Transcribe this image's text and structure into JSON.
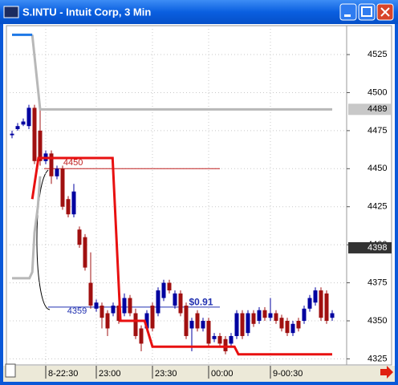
{
  "window": {
    "title": "S.INTU - Intuit Corp, 3 Min"
  },
  "chart_data": {
    "type": "candlestick",
    "up_color": "#0000a0",
    "down_color": "#a01010",
    "open": [
      4472,
      4476,
      4479,
      4478,
      4490,
      4475,
      4455,
      4460,
      4445,
      4450,
      4430,
      4420,
      4410,
      4405,
      4375,
      4358,
      4360,
      4355,
      4355,
      4360,
      4355,
      4365,
      4355,
      4345,
      4345,
      4360,
      4355,
      4365,
      4375,
      4360,
      4368,
      4360,
      4345,
      4355,
      4345,
      4350,
      4338,
      4340,
      4338,
      4335,
      4340,
      4355,
      4342,
      4355,
      4350,
      4357,
      4352,
      4355,
      4352,
      4350,
      4342,
      4350,
      4350,
      4358,
      4362,
      4370,
      4368,
      4352
    ],
    "close": [
      4473,
      4478,
      4481,
      4490,
      4455,
      4455,
      4460,
      4445,
      4450,
      4425,
      4420,
      4435,
      4400,
      4385,
      4360,
      4362,
      4352,
      4345,
      4360,
      4350,
      4365,
      4355,
      4340,
      4335,
      4355,
      4345,
      4370,
      4375,
      4370,
      4368,
      4355,
      4340,
      4350,
      4345,
      4350,
      4335,
      4340,
      4335,
      4330,
      4340,
      4355,
      4340,
      4355,
      4348,
      4357,
      4352,
      4355,
      4350,
      4345,
      4342,
      4348,
      4345,
      4358,
      4365,
      4370,
      4352,
      4350,
      4355
    ],
    "high": [
      4475,
      4480,
      4483,
      4492,
      4492,
      4490,
      4462,
      4462,
      4452,
      4452,
      4432,
      4440,
      4412,
      4407,
      4395,
      4364,
      4362,
      4357,
      4362,
      4362,
      4368,
      4367,
      4358,
      4347,
      4357,
      4362,
      4372,
      4377,
      4377,
      4370,
      4370,
      4362,
      4352,
      4357,
      4352,
      4352,
      4342,
      4342,
      4340,
      4342,
      4357,
      4357,
      4357,
      4357,
      4359,
      4359,
      4365,
      4357,
      4354,
      4352,
      4350,
      4352,
      4360,
      4367,
      4372,
      4372,
      4370,
      4357
    ],
    "low": [
      4470,
      4475,
      4478,
      4476,
      4453,
      4452,
      4453,
      4440,
      4443,
      4423,
      4418,
      4418,
      4398,
      4383,
      4358,
      4356,
      4345,
      4340,
      4353,
      4348,
      4353,
      4353,
      4338,
      4330,
      4343,
      4343,
      4353,
      4363,
      4368,
      4358,
      4353,
      4338,
      4330,
      4343,
      4343,
      4333,
      4336,
      4333,
      4328,
      4333,
      4338,
      4338,
      4340,
      4346,
      4348,
      4350,
      4350,
      4348,
      4343,
      4340,
      4340,
      4343,
      4348,
      4356,
      4360,
      4350,
      4348,
      4350
    ],
    "lines": [
      {
        "color": "#b8b8b8",
        "x": [
          0,
          3.1,
          3.6,
          4,
          4.6,
          5
        ],
        "values": [
          4378,
          4378,
          4382,
          4408,
          4425,
          4445
        ]
      },
      {
        "color": "#b8b8b8",
        "x": [
          3.6,
          5,
          57
        ],
        "values": [
          4538,
          4489,
          4489
        ]
      },
      {
        "color": "#1e78e6",
        "x": [
          0,
          3.6
        ],
        "values": [
          4538,
          4538
        ]
      },
      {
        "color": "#e81010",
        "x": [
          3.6,
          4.7,
          17.9,
          19.3,
          23.6,
          25,
          39.6,
          40.3,
          57
        ],
        "values": [
          4430,
          4457,
          4457,
          4350,
          4350,
          4333,
          4333,
          4328,
          4328
        ]
      }
    ],
    "levels": [
      {
        "color": "#c02020",
        "x": [
          5.7,
          37
        ],
        "value": 4450
      },
      {
        "color": "#2030b0",
        "x": [
          6.4,
          37
        ],
        "value": 4359
      }
    ],
    "annotation": {
      "text": "$0.91",
      "x": 31.5,
      "y": 4362
    },
    "price_markers": [
      4489,
      4398
    ],
    "xlim": [
      -1,
      59.57
    ],
    "ylim": [
      4321,
      4544
    ],
    "yticks": [
      4325,
      4350,
      4375,
      4400,
      4425,
      4450,
      4475,
      4500,
      4525
    ],
    "xticks": [
      {
        "value": 6,
        "label": "8-22:30"
      },
      {
        "value": 15,
        "label": "23:00"
      },
      {
        "value": 25,
        "label": "23:30"
      },
      {
        "value": 35,
        "label": "00:00"
      },
      {
        "value": 46,
        "label": "9-00:30"
      }
    ],
    "grid": true
  }
}
